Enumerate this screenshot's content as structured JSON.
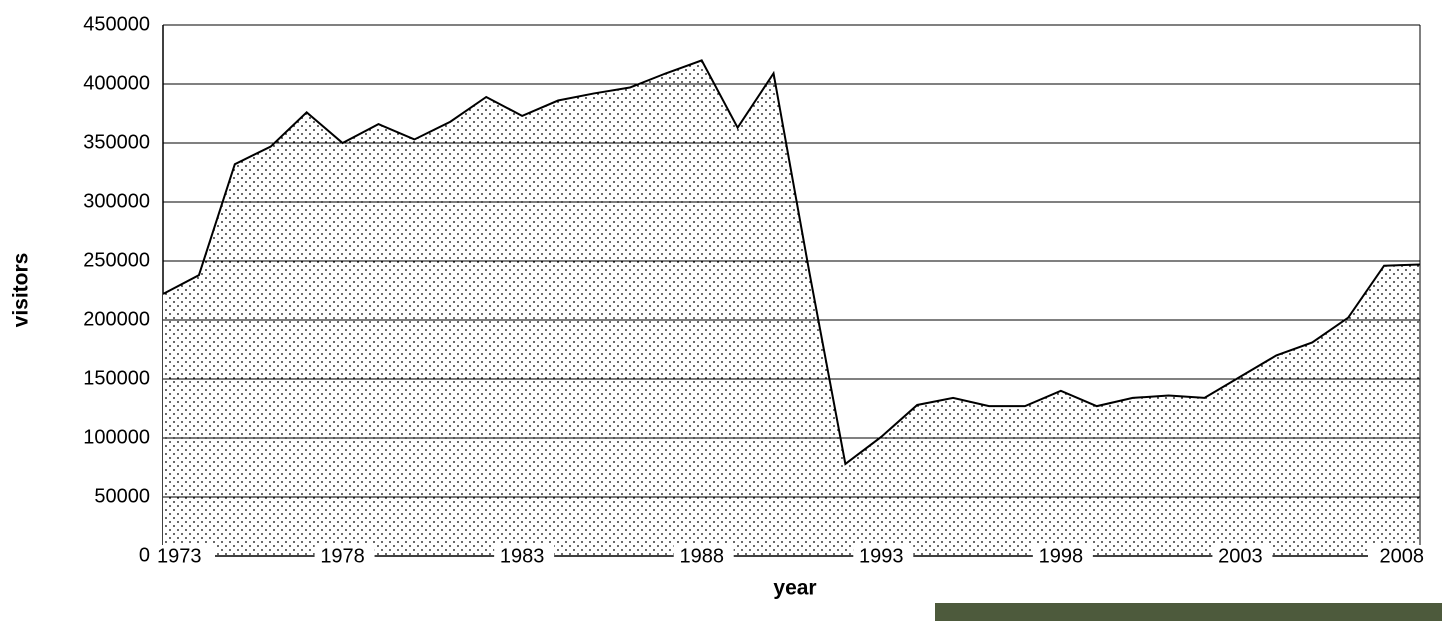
{
  "chart_data": {
    "type": "area",
    "x_label": "year",
    "y_label": "visitors",
    "x": [
      1973,
      1974,
      1975,
      1976,
      1977,
      1978,
      1979,
      1980,
      1981,
      1982,
      1983,
      1984,
      1985,
      1986,
      1987,
      1988,
      1989,
      1990,
      1991,
      1992,
      1993,
      1994,
      1995,
      1996,
      1997,
      1998,
      1999,
      2000,
      2001,
      2002,
      2003,
      2004,
      2005,
      2006,
      2007,
      2008
    ],
    "values": [
      222000,
      238000,
      332000,
      347000,
      376000,
      350000,
      366000,
      353000,
      368000,
      389000,
      373000,
      386000,
      392000,
      397000,
      409000,
      420000,
      363000,
      409000,
      240000,
      78000,
      101000,
      128000,
      134000,
      127000,
      127000,
      140000,
      127000,
      134000,
      136000,
      134000,
      152000,
      170000,
      181000,
      202000,
      246000,
      247000
    ],
    "color": "#000000",
    "xlim": [
      1973,
      2008
    ],
    "xticks": [
      1973,
      1978,
      1983,
      1988,
      1993,
      1998,
      2003,
      2008
    ],
    "ylim": [
      0,
      450000
    ],
    "yticks": [
      0,
      50000,
      100000,
      150000,
      200000,
      250000,
      300000,
      350000,
      400000,
      450000
    ],
    "grid": true
  }
}
